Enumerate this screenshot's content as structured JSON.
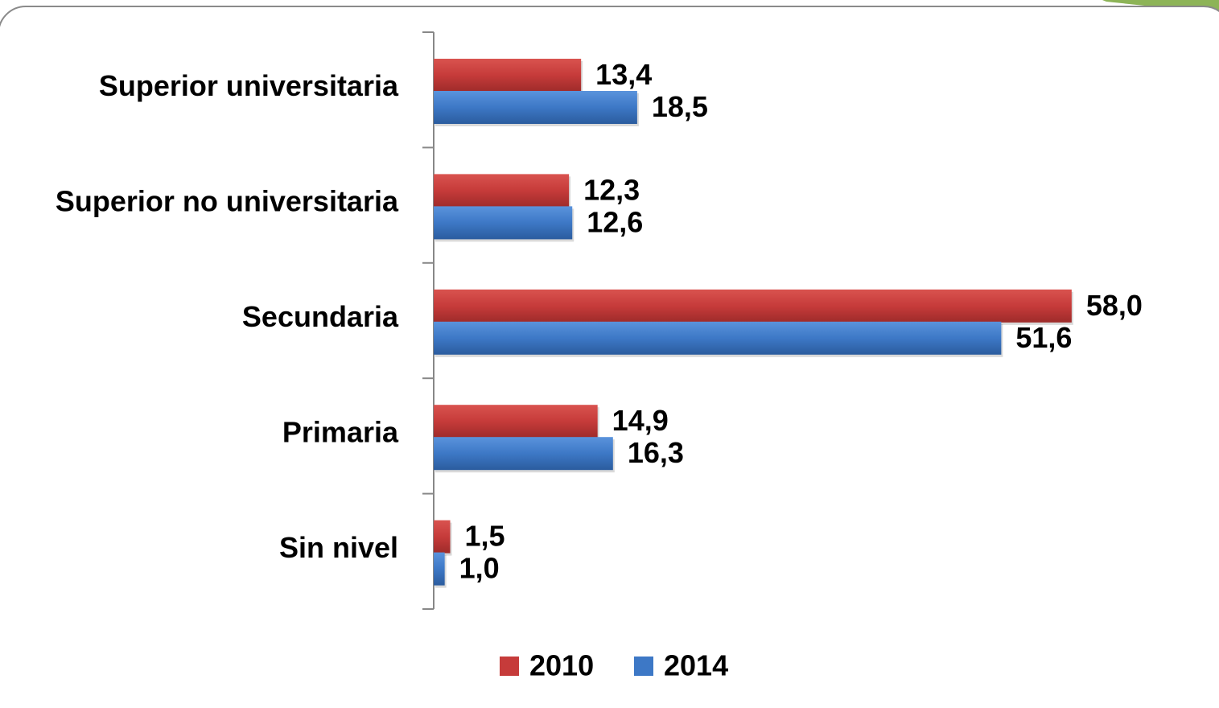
{
  "chart_data": {
    "type": "bar",
    "orientation": "horizontal",
    "categories": [
      "Superior universitaria",
      "Superior no universitaria",
      "Secundaria",
      "Primaria",
      "Sin nivel"
    ],
    "series": [
      {
        "name": "2010",
        "color": "#c63b3a",
        "values": [
          13.4,
          12.3,
          58.0,
          14.9,
          1.5
        ],
        "value_labels": [
          "13,4",
          "12,3",
          "58,0",
          "14,9",
          "1,5"
        ]
      },
      {
        "name": "2014",
        "color": "#3d78c6",
        "values": [
          18.5,
          12.6,
          51.6,
          16.3,
          1.0
        ],
        "value_labels": [
          "18,5",
          "12,6",
          "51,6",
          "16,3",
          "1,0"
        ]
      }
    ],
    "legend": "bottom"
  }
}
